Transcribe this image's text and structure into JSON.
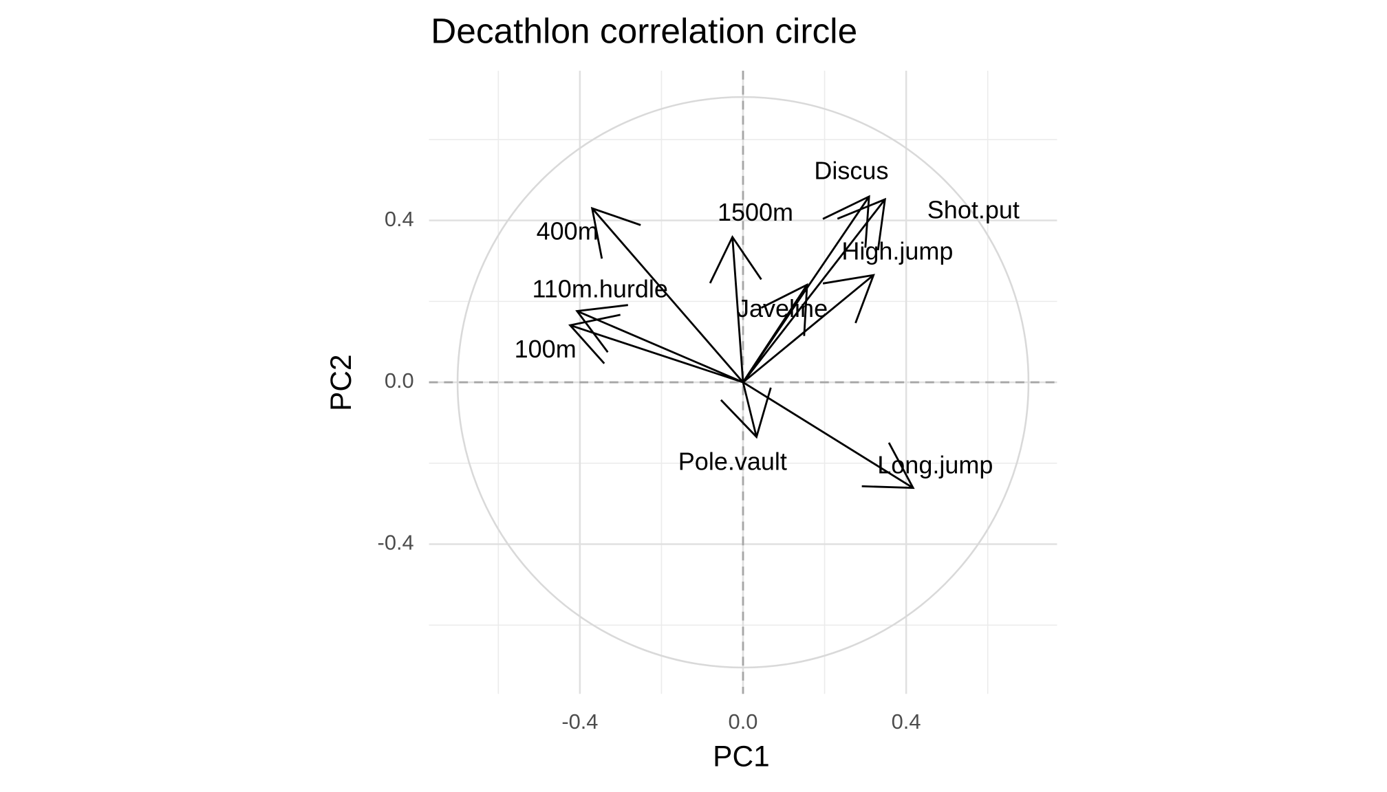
{
  "chart_data": {
    "type": "arrow",
    "title": "Decathlon correlation circle",
    "x_label": "PC1",
    "y_label": "PC2",
    "categories": [
      "400m",
      "1500m",
      "110m.hurdle",
      "100m",
      "Discus",
      "Shot.put",
      "High.jump",
      "Javeline",
      "Pole.vault",
      "Long.jump"
    ],
    "x": [
      -0.37,
      -0.026,
      -0.407,
      -0.424,
      0.309,
      0.348,
      0.32,
      0.157,
      0.033,
      0.417
    ],
    "values": [
      0.43,
      0.359,
      0.176,
      0.141,
      0.459,
      0.452,
      0.265,
      0.241,
      -0.135,
      -0.261
    ],
    "color": "#000000",
    "xlim": [
      -0.77,
      0.77
    ],
    "ylim": [
      -0.77,
      0.77
    ],
    "xticks": [
      -0.4,
      {
        "value": 0,
        "label": "0.0"
      },
      0.4
    ],
    "yticks": [
      -0.4,
      {
        "value": 0,
        "label": "0.0"
      },
      0.4
    ],
    "minor_ticks": [
      -0.6,
      -0.2,
      0.2,
      0.6
    ],
    "circle_radius": 0.7,
    "grid": true,
    "reference_lines": true
  }
}
